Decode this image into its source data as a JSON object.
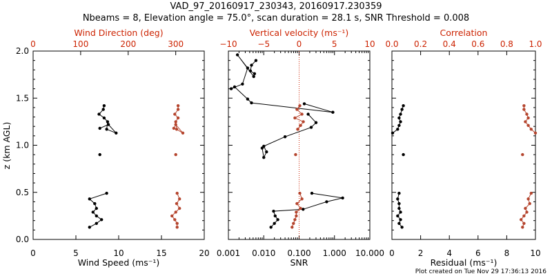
{
  "title": {
    "line1": "VAD_97_20160917_230343, 20160917.230359",
    "line2": "Nbeams = 8, Elevation angle = 75.0°, scan duration = 28.1 s, SNR Threshold = 0.008"
  },
  "footer": "Plot created on Tue Nov 29 17:36:13 2016",
  "colors": {
    "black": "#000000",
    "red": "#cc2200",
    "red_marker": "#b5452e"
  },
  "chart_data": [
    {
      "type": "line",
      "name": "wind",
      "ylabel": "z (km AGL)",
      "ylim": [
        0,
        2
      ],
      "yticks": [
        "0.0",
        "0.5",
        "1.0",
        "1.5",
        "2.0"
      ],
      "xlabel": "Wind Speed (ms⁻¹)",
      "xlim": [
        0,
        20
      ],
      "xticks": [
        "0",
        "5",
        "10",
        "15",
        "20"
      ],
      "top_label": "Wind Direction (deg)",
      "top_xlim": [
        0,
        360
      ],
      "top_xticks": [
        "0",
        "100",
        "200",
        "300"
      ],
      "series": [
        {
          "name": "Wind Speed",
          "color": "#000000",
          "axis": "bottom",
          "segments": [
            [
              [
                6.6,
                0.13
              ],
              [
                7.4,
                0.17
              ],
              [
                8.0,
                0.21
              ],
              [
                7.4,
                0.25
              ],
              [
                7.0,
                0.29
              ],
              [
                7.4,
                0.33
              ],
              [
                7.2,
                0.38
              ],
              [
                6.6,
                0.43
              ],
              [
                8.6,
                0.49
              ]
            ],
            [
              [
                7.8,
                0.9
              ]
            ],
            [
              [
                7.8,
                1.18
              ],
              [
                8.8,
                1.22
              ],
              [
                9.7,
                1.13
              ],
              [
                8.6,
                1.17
              ],
              [
                8.7,
                1.25
              ],
              [
                8.3,
                1.29
              ],
              [
                7.7,
                1.33
              ],
              [
                8.2,
                1.38
              ],
              [
                8.3,
                1.42
              ]
            ]
          ]
        },
        {
          "name": "Wind Direction",
          "color": "#b5452e",
          "axis": "top",
          "segments": [
            [
              [
                303,
                0.13
              ],
              [
                303,
                0.17
              ],
              [
                298,
                0.21
              ],
              [
                292,
                0.25
              ],
              [
                300,
                0.29
              ],
              [
                308,
                0.33
              ],
              [
                302,
                0.38
              ],
              [
                308,
                0.43
              ],
              [
                303,
                0.49
              ]
            ],
            [
              [
                300,
                0.9
              ]
            ],
            [
              [
                296,
                1.18
              ],
              [
                300,
                1.22
              ],
              [
                315,
                1.13
              ],
              [
                302,
                1.17
              ],
              [
                300,
                1.25
              ],
              [
                305,
                1.29
              ],
              [
                298,
                1.33
              ],
              [
                305,
                1.38
              ],
              [
                305,
                1.42
              ]
            ]
          ]
        }
      ]
    },
    {
      "type": "line",
      "name": "snr",
      "ylim": [
        0,
        2
      ],
      "xlabel": "SNR",
      "xscale": "log",
      "xlim": [
        0.001,
        10
      ],
      "xticks": [
        "0.001",
        "0.010",
        "0.100",
        "1.000",
        "10.000"
      ],
      "top_label": "Vertical velocity (ms⁻¹)",
      "top_xlim": [
        -10,
        10
      ],
      "top_xticks": [
        "−10",
        "−5",
        "0",
        "5",
        "10"
      ],
      "reference_line": {
        "axis": "top",
        "value": 0,
        "style": "dotted",
        "color": "#cc2200"
      },
      "series": [
        {
          "name": "SNR",
          "color": "#000000",
          "axis": "bottom",
          "segments": [
            [
              [
                0.016,
                0.13
              ],
              [
                0.02,
                0.17
              ],
              [
                0.025,
                0.21
              ],
              [
                0.021,
                0.25
              ],
              [
                0.019,
                0.3
              ],
              [
                0.13,
                0.32
              ],
              [
                0.6,
                0.4
              ],
              [
                1.7,
                0.44
              ],
              [
                0.23,
                0.49
              ]
            ],
            [
              [
                0.006,
                1.9
              ],
              [
                0.0045,
                1.85
              ],
              [
                0.0042,
                1.79
              ],
              [
                0.0055,
                1.76
              ],
              [
                0.0052,
                1.73
              ],
              [
                0.0018,
                1.96
              ],
              [
                0.0035,
                1.82
              ],
              [
                0.0025,
                1.65
              ],
              [
                0.0012,
                1.6
              ],
              [
                0.0015,
                1.62
              ],
              [
                0.0035,
                1.49
              ],
              [
                0.0045,
                1.45
              ],
              [
                0.9,
                1.35
              ],
              [
                0.14,
                1.44
              ]
            ],
            [
              [
                0.18,
                1.33
              ],
              [
                0.3,
                1.24
              ],
              [
                0.22,
                1.19
              ],
              [
                0.04,
                1.09
              ],
              [
                0.01,
                0.99
              ],
              [
                0.012,
                0.93
              ],
              [
                0.01,
                0.87
              ],
              [
                0.009,
                0.97
              ]
            ]
          ]
        },
        {
          "name": "Vertical velocity",
          "color": "#b5452e",
          "axis": "top",
          "segments": [
            [
              [
                -1.0,
                0.13
              ],
              [
                -0.8,
                0.17
              ],
              [
                -0.6,
                0.21
              ],
              [
                -0.4,
                0.25
              ],
              [
                -0.4,
                0.29
              ],
              [
                0.2,
                0.33
              ],
              [
                -0.3,
                0.38
              ],
              [
                0.4,
                0.43
              ],
              [
                0.1,
                0.49
              ]
            ],
            [
              [
                -0.5,
                0.9
              ]
            ],
            [
              [
                -0.2,
                1.17
              ],
              [
                0.2,
                1.21
              ],
              [
                0.6,
                1.25
              ],
              [
                -0.6,
                1.29
              ],
              [
                0.4,
                1.33
              ],
              [
                -0.3,
                1.38
              ],
              [
                0.1,
                1.42
              ]
            ]
          ]
        }
      ]
    },
    {
      "type": "line",
      "name": "residual",
      "ylim": [
        0,
        2
      ],
      "xlabel": "Residual (ms⁻¹)",
      "xlim": [
        0,
        10
      ],
      "xticks": [
        "0",
        "2",
        "4",
        "6",
        "8",
        "10"
      ],
      "top_label": "Correlation",
      "top_xlim": [
        0,
        1
      ],
      "top_xticks": [
        "0.0",
        "0.2",
        "0.4",
        "0.6",
        "0.8",
        "1.0"
      ],
      "series": [
        {
          "name": "Residual",
          "color": "#000000",
          "axis": "bottom",
          "segments": [
            [
              [
                0.7,
                0.13
              ],
              [
                0.5,
                0.17
              ],
              [
                0.6,
                0.21
              ],
              [
                0.4,
                0.25
              ],
              [
                0.6,
                0.29
              ],
              [
                0.5,
                0.33
              ],
              [
                0.5,
                0.38
              ],
              [
                0.4,
                0.43
              ],
              [
                0.5,
                0.49
              ]
            ],
            [
              [
                0.8,
                0.9
              ]
            ],
            [
              [
                0.05,
                1.13
              ],
              [
                0.4,
                1.17
              ],
              [
                0.5,
                1.21
              ],
              [
                0.6,
                1.25
              ],
              [
                0.5,
                1.29
              ],
              [
                0.6,
                1.33
              ],
              [
                0.7,
                1.38
              ],
              [
                0.8,
                1.42
              ]
            ]
          ]
        },
        {
          "name": "Correlation",
          "color": "#b5452e",
          "axis": "top",
          "segments": [
            [
              [
                0.91,
                0.13
              ],
              [
                0.92,
                0.17
              ],
              [
                0.9,
                0.21
              ],
              [
                0.92,
                0.25
              ],
              [
                0.94,
                0.29
              ],
              [
                0.93,
                0.33
              ],
              [
                0.96,
                0.38
              ],
              [
                0.95,
                0.43
              ],
              [
                0.97,
                0.49
              ]
            ],
            [
              [
                0.91,
                0.9
              ]
            ],
            [
              [
                1.0,
                1.13
              ],
              [
                0.97,
                1.17
              ],
              [
                0.95,
                1.21
              ],
              [
                0.93,
                1.25
              ],
              [
                0.95,
                1.29
              ],
              [
                0.94,
                1.33
              ],
              [
                0.92,
                1.38
              ],
              [
                0.92,
                1.42
              ]
            ]
          ]
        }
      ]
    }
  ]
}
